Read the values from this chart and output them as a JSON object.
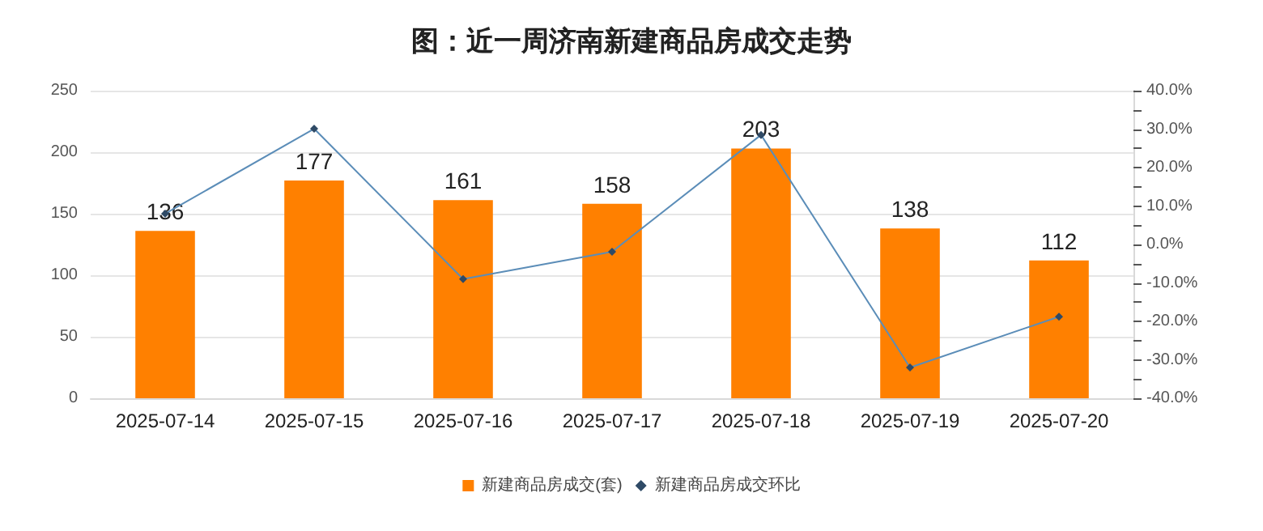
{
  "chart_data": {
    "type": "bar",
    "title": "图：近一周济南新建商品房成交走势",
    "categories": [
      "2025-07-14",
      "2025-07-15",
      "2025-07-16",
      "2025-07-17",
      "2025-07-18",
      "2025-07-19",
      "2025-07-20"
    ],
    "series": [
      {
        "name": "新建商品房成交(套)",
        "color": "#ff8000",
        "values": [
          136,
          177,
          161,
          158,
          203,
          138,
          112
        ],
        "value_labels": [
          "136",
          "177",
          "161",
          "158",
          "203",
          "138",
          "112"
        ]
      },
      {
        "name": "新建商品房成交环比",
        "type": "line",
        "axis": "y2",
        "color": "#5b8db8",
        "values": [
          8,
          30.1,
          -9.0,
          -1.9,
          28.5,
          -32.0,
          -18.8
        ]
      }
    ],
    "ylim": [
      0,
      250
    ],
    "yticks": [
      0,
      50,
      100,
      150,
      200,
      250
    ],
    "y2lim": [
      -40,
      40
    ],
    "y2ticks": [
      {
        "value": -40,
        "label": "-40.0%"
      },
      {
        "value": -35,
        "label": null
      },
      {
        "value": -30,
        "label": "-30.0%"
      },
      {
        "value": -25,
        "label": null
      },
      {
        "value": -20,
        "label": "-20.0%"
      },
      {
        "value": -15,
        "label": null
      },
      {
        "value": -10,
        "label": "-10.0%"
      },
      {
        "value": -5,
        "label": null
      },
      {
        "value": 0,
        "label": "0.0%"
      },
      {
        "value": 5,
        "label": null
      },
      {
        "value": 10,
        "label": "10.0%"
      },
      {
        "value": 15,
        "label": null
      },
      {
        "value": 20,
        "label": "20.0%"
      },
      {
        "value": 25,
        "label": null
      },
      {
        "value": 30,
        "label": "30.0%"
      },
      {
        "value": 35,
        "label": null
      },
      {
        "value": 40,
        "label": "40.0%"
      }
    ],
    "grid": "y",
    "legend": "bottom",
    "marker": "diamond"
  }
}
